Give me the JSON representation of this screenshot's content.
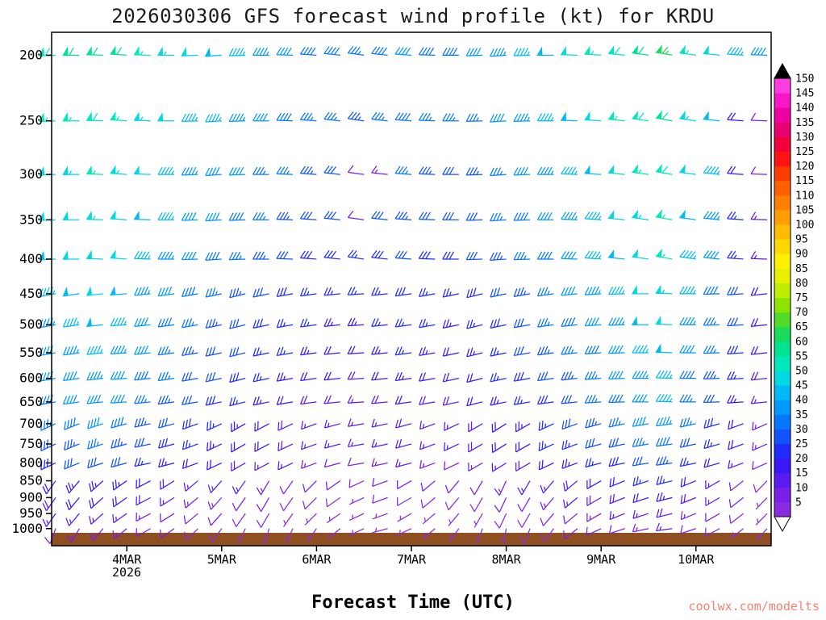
{
  "title": "2026030306 GFS forecast wind profile (kt) for KRDU",
  "xlabel": "Forecast Time (UTC)",
  "watermark": "coolwx.com/modelts",
  "ground_color": "#8f4f21",
  "axes": {
    "year_label": "2026",
    "pressure_ticks": [
      200,
      250,
      300,
      350,
      400,
      450,
      500,
      550,
      600,
      650,
      700,
      750,
      800,
      850,
      900,
      950,
      1000
    ],
    "time_ticks": [
      {
        "label": "4MAR",
        "index": 3
      },
      {
        "label": "5MAR",
        "index": 7
      },
      {
        "label": "6MAR",
        "index": 11
      },
      {
        "label": "7MAR",
        "index": 15
      },
      {
        "label": "8MAR",
        "index": 19
      },
      {
        "label": "9MAR",
        "index": 23
      },
      {
        "label": "10MAR",
        "index": 27
      }
    ]
  },
  "colorbar": {
    "values": [
      5,
      10,
      15,
      20,
      25,
      30,
      35,
      40,
      45,
      50,
      55,
      60,
      65,
      70,
      75,
      80,
      85,
      90,
      95,
      100,
      105,
      110,
      115,
      120,
      125,
      130,
      135,
      140,
      145,
      150
    ],
    "colors": [
      "#8a2be2",
      "#7a1fe8",
      "#5a1bf0",
      "#3a17f8",
      "#1f2bff",
      "#1053ff",
      "#0578ff",
      "#009aff",
      "#00baf6",
      "#00d8e2",
      "#00e8bc",
      "#00e492",
      "#18dc5a",
      "#50dc28",
      "#8ce400",
      "#c0ec00",
      "#e8f000",
      "#fff000",
      "#ffd800",
      "#ffbc00",
      "#ff9e00",
      "#ff8000",
      "#ff6000",
      "#ff3c00",
      "#ff1414",
      "#f2003c",
      "#e80070",
      "#ee00a0",
      "#f716c8",
      "#ff3ce0"
    ]
  },
  "chart_data": {
    "type": "wind-barb",
    "model": "GFS",
    "station": "KRDU",
    "init_time": "2026030306",
    "units": "kt",
    "time_step_hours": 6,
    "n_times": 31,
    "series": [
      {
        "pressure": 200,
        "speed_kt": [
          58,
          60,
          62,
          60,
          56,
          53,
          50,
          48,
          46,
          43,
          41,
          39,
          38,
          37,
          39,
          41,
          39,
          38,
          40,
          43,
          46,
          49,
          52,
          55,
          58,
          62,
          65,
          57,
          51,
          46,
          40
        ],
        "dir_deg": [
          268,
          270,
          272,
          274,
          272,
          270,
          268,
          266,
          268,
          270,
          272,
          274,
          276,
          278,
          276,
          274,
          272,
          270,
          268,
          266,
          268,
          270,
          272,
          274,
          276,
          278,
          280,
          278,
          276,
          274,
          272
        ]
      },
      {
        "pressure": 250,
        "speed_kt": [
          55,
          57,
          59,
          57,
          53,
          50,
          47,
          45,
          43,
          40,
          38,
          36,
          35,
          34,
          36,
          38,
          36,
          35,
          37,
          40,
          43,
          46,
          49,
          52,
          55,
          59,
          62,
          54,
          48,
          20,
          12
        ],
        "dir_deg": [
          268,
          270,
          272,
          274,
          272,
          270,
          268,
          266,
          268,
          270,
          272,
          274,
          276,
          278,
          276,
          274,
          272,
          270,
          268,
          266,
          268,
          270,
          272,
          274,
          276,
          278,
          280,
          278,
          276,
          274,
          272
        ]
      },
      {
        "pressure": 300,
        "speed_kt": [
          52,
          54,
          56,
          54,
          50,
          47,
          44,
          42,
          40,
          37,
          35,
          33,
          32,
          12,
          14,
          35,
          33,
          32,
          34,
          37,
          40,
          43,
          46,
          49,
          52,
          56,
          59,
          51,
          45,
          20,
          12
        ],
        "dir_deg": [
          268,
          270,
          272,
          274,
          272,
          270,
          268,
          266,
          268,
          270,
          272,
          274,
          276,
          278,
          276,
          274,
          272,
          270,
          268,
          266,
          268,
          270,
          272,
          274,
          276,
          278,
          280,
          278,
          276,
          274,
          272
        ]
      },
      {
        "pressure": 350,
        "speed_kt": [
          50,
          52,
          54,
          52,
          48,
          45,
          42,
          40,
          38,
          35,
          33,
          31,
          30,
          12,
          31,
          33,
          31,
          30,
          32,
          35,
          38,
          41,
          44,
          47,
          50,
          54,
          57,
          49,
          43,
          25,
          15
        ],
        "dir_deg": [
          268,
          270,
          272,
          274,
          272,
          270,
          268,
          266,
          268,
          270,
          272,
          274,
          276,
          278,
          276,
          274,
          272,
          270,
          268,
          266,
          268,
          270,
          272,
          274,
          276,
          278,
          280,
          278,
          276,
          274,
          272
        ]
      },
      {
        "pressure": 400,
        "speed_kt": [
          48,
          50,
          52,
          50,
          46,
          43,
          40,
          38,
          36,
          33,
          31,
          29,
          28,
          27,
          29,
          31,
          29,
          28,
          30,
          33,
          36,
          39,
          42,
          45,
          48,
          52,
          55,
          47,
          41,
          25,
          15
        ],
        "dir_deg": [
          268,
          270,
          272,
          274,
          272,
          270,
          268,
          266,
          268,
          270,
          272,
          274,
          276,
          278,
          276,
          274,
          272,
          270,
          268,
          266,
          268,
          270,
          272,
          274,
          276,
          278,
          280,
          278,
          276,
          274,
          272
        ]
      },
      {
        "pressure": 450,
        "speed_kt": [
          46,
          48,
          50,
          48,
          44,
          41,
          38,
          36,
          34,
          31,
          29,
          27,
          26,
          25,
          27,
          29,
          27,
          26,
          28,
          31,
          34,
          37,
          40,
          43,
          46,
          50,
          53,
          45,
          39,
          30,
          22
        ],
        "dir_deg": [
          260,
          262,
          264,
          266,
          264,
          262,
          260,
          258,
          256,
          258,
          260,
          262,
          264,
          266,
          264,
          262,
          260,
          258,
          256,
          258,
          260,
          262,
          264,
          266,
          268,
          270,
          272,
          270,
          268,
          266,
          264
        ]
      },
      {
        "pressure": 500,
        "speed_kt": [
          44,
          46,
          48,
          46,
          42,
          39,
          36,
          34,
          32,
          29,
          27,
          25,
          24,
          23,
          25,
          27,
          25,
          24,
          26,
          29,
          32,
          35,
          38,
          41,
          44,
          48,
          51,
          43,
          37,
          30,
          22
        ],
        "dir_deg": [
          260,
          262,
          264,
          266,
          264,
          262,
          260,
          258,
          256,
          258,
          260,
          262,
          264,
          266,
          264,
          262,
          260,
          258,
          256,
          258,
          260,
          262,
          264,
          266,
          268,
          270,
          272,
          270,
          268,
          266,
          264
        ]
      },
      {
        "pressure": 550,
        "speed_kt": [
          42,
          44,
          46,
          44,
          40,
          37,
          34,
          32,
          30,
          27,
          25,
          23,
          22,
          21,
          23,
          25,
          23,
          22,
          24,
          27,
          30,
          33,
          36,
          39,
          42,
          46,
          49,
          41,
          35,
          28,
          20
        ],
        "dir_deg": [
          260,
          262,
          264,
          266,
          264,
          262,
          260,
          258,
          256,
          258,
          260,
          262,
          264,
          266,
          264,
          262,
          260,
          258,
          256,
          258,
          260,
          262,
          264,
          266,
          268,
          270,
          272,
          270,
          268,
          266,
          264
        ]
      },
      {
        "pressure": 600,
        "speed_kt": [
          40,
          42,
          44,
          42,
          38,
          35,
          32,
          30,
          28,
          25,
          23,
          21,
          20,
          19,
          21,
          23,
          21,
          20,
          22,
          25,
          28,
          31,
          34,
          37,
          40,
          44,
          47,
          39,
          33,
          26,
          18
        ],
        "dir_deg": [
          260,
          262,
          264,
          266,
          264,
          262,
          260,
          258,
          256,
          258,
          260,
          262,
          264,
          266,
          264,
          262,
          260,
          258,
          256,
          258,
          260,
          262,
          264,
          266,
          268,
          270,
          272,
          270,
          268,
          266,
          264
        ]
      },
      {
        "pressure": 650,
        "speed_kt": [
          38,
          40,
          42,
          40,
          36,
          33,
          30,
          28,
          26,
          23,
          21,
          19,
          18,
          17,
          19,
          21,
          19,
          18,
          20,
          23,
          26,
          29,
          32,
          35,
          38,
          42,
          45,
          37,
          31,
          24,
          16
        ],
        "dir_deg": [
          260,
          262,
          264,
          266,
          264,
          262,
          260,
          258,
          256,
          258,
          260,
          262,
          264,
          266,
          264,
          262,
          260,
          258,
          256,
          258,
          260,
          262,
          264,
          266,
          268,
          270,
          272,
          270,
          268,
          266,
          264
        ]
      },
      {
        "pressure": 700,
        "speed_kt": [
          36,
          38,
          40,
          38,
          34,
          31,
          28,
          26,
          24,
          21,
          19,
          17,
          16,
          15,
          17,
          19,
          17,
          16,
          18,
          21,
          24,
          27,
          30,
          33,
          36,
          40,
          43,
          35,
          29,
          22,
          14
        ],
        "dir_deg": [
          245,
          248,
          252,
          255,
          258,
          255,
          250,
          245,
          240,
          242,
          245,
          250,
          255,
          260,
          258,
          255,
          250,
          245,
          240,
          238,
          240,
          245,
          250,
          255,
          258,
          260,
          262,
          258,
          254,
          250,
          246
        ]
      },
      {
        "pressure": 750,
        "speed_kt": [
          32,
          34,
          35,
          34,
          30,
          28,
          26,
          24,
          22,
          20,
          18,
          17,
          16,
          15,
          17,
          18,
          17,
          16,
          18,
          20,
          22,
          25,
          27,
          30,
          32,
          35,
          38,
          31,
          26,
          20,
          13
        ],
        "dir_deg": [
          245,
          248,
          252,
          255,
          258,
          255,
          250,
          245,
          240,
          242,
          245,
          250,
          255,
          260,
          258,
          255,
          250,
          245,
          240,
          238,
          240,
          245,
          250,
          255,
          258,
          260,
          262,
          258,
          254,
          250,
          246
        ]
      },
      {
        "pressure": 800,
        "speed_kt": [
          28,
          30,
          31,
          30,
          26,
          24,
          22,
          20,
          18,
          16,
          15,
          13,
          12,
          11,
          13,
          15,
          13,
          12,
          14,
          16,
          18,
          21,
          23,
          26,
          28,
          31,
          34,
          27,
          22,
          16,
          10
        ],
        "dir_deg": [
          245,
          248,
          252,
          255,
          258,
          255,
          250,
          245,
          240,
          242,
          245,
          250,
          255,
          260,
          258,
          255,
          250,
          245,
          240,
          238,
          240,
          245,
          250,
          255,
          258,
          260,
          262,
          258,
          254,
          250,
          246
        ]
      },
      {
        "pressure": 850,
        "speed_kt": [
          22,
          23,
          24,
          23,
          21,
          19,
          17,
          16,
          15,
          13,
          12,
          11,
          10,
          9,
          11,
          12,
          11,
          10,
          12,
          13,
          15,
          17,
          19,
          21,
          22,
          25,
          27,
          21,
          17,
          12,
          8
        ],
        "dir_deg": [
          215,
          220,
          228,
          235,
          242,
          238,
          230,
          222,
          215,
          210,
          215,
          225,
          235,
          245,
          250,
          240,
          230,
          220,
          210,
          205,
          210,
          220,
          230,
          240,
          248,
          252,
          256,
          248,
          240,
          232,
          224
        ]
      },
      {
        "pressure": 900,
        "speed_kt": [
          19,
          20,
          21,
          20,
          18,
          16,
          14,
          13,
          12,
          10,
          9,
          8,
          8,
          7,
          8,
          9,
          8,
          8,
          9,
          10,
          12,
          14,
          16,
          18,
          19,
          21,
          23,
          18,
          14,
          10,
          7
        ],
        "dir_deg": [
          215,
          220,
          228,
          235,
          242,
          238,
          230,
          222,
          215,
          210,
          215,
          225,
          235,
          245,
          250,
          240,
          230,
          220,
          210,
          205,
          210,
          220,
          230,
          240,
          248,
          252,
          256,
          248,
          240,
          232,
          224
        ]
      },
      {
        "pressure": 950,
        "speed_kt": [
          15,
          16,
          17,
          16,
          14,
          12,
          11,
          10,
          9,
          8,
          7,
          6,
          6,
          5,
          6,
          7,
          6,
          6,
          7,
          8,
          9,
          11,
          12,
          14,
          15,
          17,
          18,
          14,
          11,
          8,
          5
        ],
        "dir_deg": [
          215,
          220,
          228,
          235,
          242,
          238,
          230,
          222,
          215,
          210,
          215,
          225,
          235,
          245,
          250,
          240,
          230,
          220,
          210,
          205,
          210,
          220,
          230,
          240,
          248,
          252,
          256,
          248,
          240,
          232,
          224
        ]
      },
      {
        "pressure": 1000,
        "speed_kt": [
          12,
          13,
          14,
          13,
          11,
          10,
          9,
          8,
          7,
          6,
          5,
          5,
          4,
          4,
          5,
          6,
          5,
          5,
          6,
          7,
          8,
          9,
          10,
          11,
          12,
          14,
          15,
          11,
          9,
          6,
          4
        ],
        "dir_deg": [
          200,
          210,
          220,
          230,
          240,
          235,
          225,
          215,
          205,
          195,
          205,
          215,
          230,
          245,
          255,
          245,
          230,
          215,
          200,
          190,
          200,
          215,
          230,
          245,
          252,
          258,
          262,
          252,
          242,
          232,
          222
        ]
      }
    ]
  }
}
